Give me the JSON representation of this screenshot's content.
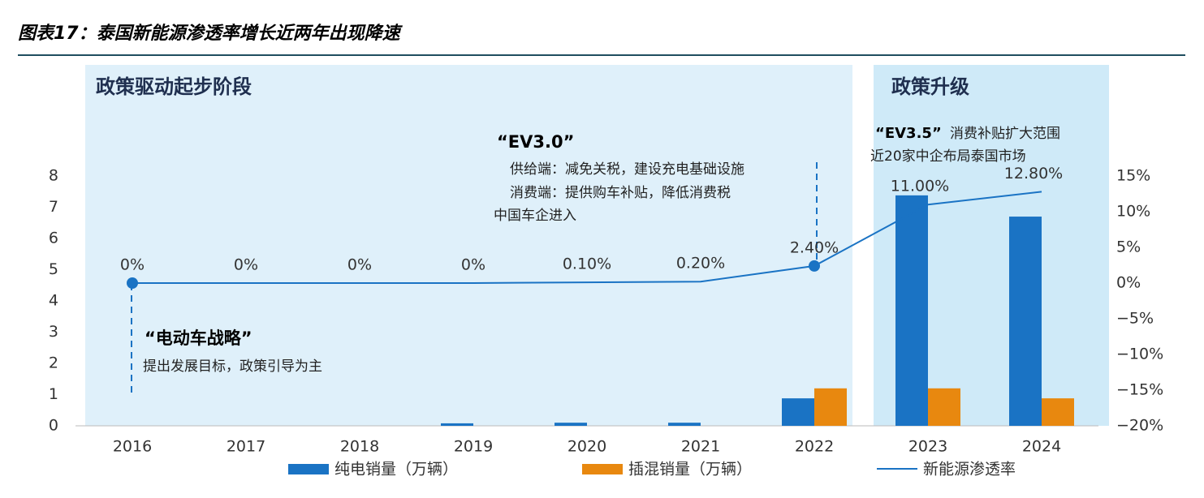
{
  "chart_data": {
    "type": "bar",
    "title": "图表17：泰国新能源渗透率增长近两年出现降速",
    "phases": [
      "政策驱动起步阶段",
      "政策升级"
    ],
    "annotations": [
      "“EV3.0”",
      "供给端：减免关税，建设充电基础设施",
      "消费端：提供购车补贴，降低消费税",
      "中国车企进入",
      "“EV3.5”",
      "消费补贴扩大范围",
      "近20家中企布局泰国市场",
      "“电动车战略”",
      "提出发展目标，政策引导为主"
    ],
    "categories": [
      "2016",
      "2017",
      "2018",
      "2019",
      "2020",
      "2021",
      "2022",
      "2023",
      "2024"
    ],
    "series": [
      {
        "name": "纯电销量（万辆）",
        "type": "bar",
        "color": "#1a73c4",
        "values": [
          0,
          0,
          0,
          0.08,
          0.1,
          0.1,
          0.88,
          7.38,
          6.7
        ]
      },
      {
        "name": "插混销量（万辆）",
        "type": "bar",
        "color": "#e8880f",
        "values": [
          0,
          0,
          0,
          0,
          0,
          0,
          1.2,
          1.2,
          0.88
        ]
      },
      {
        "name": "新能源渗透率",
        "type": "line",
        "axis": "y2",
        "color": "#1a73c4",
        "values": [
          0,
          0,
          0,
          0,
          0.1,
          0.2,
          2.4,
          11,
          12.8
        ],
        "value_labels": [
          "0%",
          "0%",
          "0%",
          "0%",
          "0.10%",
          "0.20%",
          "2.40%",
          "11.00%",
          "12.80%"
        ]
      }
    ],
    "ylim": [
      0,
      8
    ],
    "yticks": [
      0,
      1,
      2,
      3,
      4,
      5,
      6,
      7,
      8
    ],
    "y2lim": [
      -20,
      15
    ],
    "y2ticks": [
      {
        "value": -20,
        "label": "−20%"
      },
      {
        "value": -15,
        "label": "−15%"
      },
      {
        "value": -10,
        "label": "−10%"
      },
      {
        "value": -5,
        "label": "−5%"
      },
      {
        "value": 0,
        "label": "0%"
      },
      {
        "value": 5,
        "label": "5%"
      },
      {
        "value": 10,
        "label": "10%"
      },
      {
        "value": 15,
        "label": "15%"
      }
    ]
  }
}
